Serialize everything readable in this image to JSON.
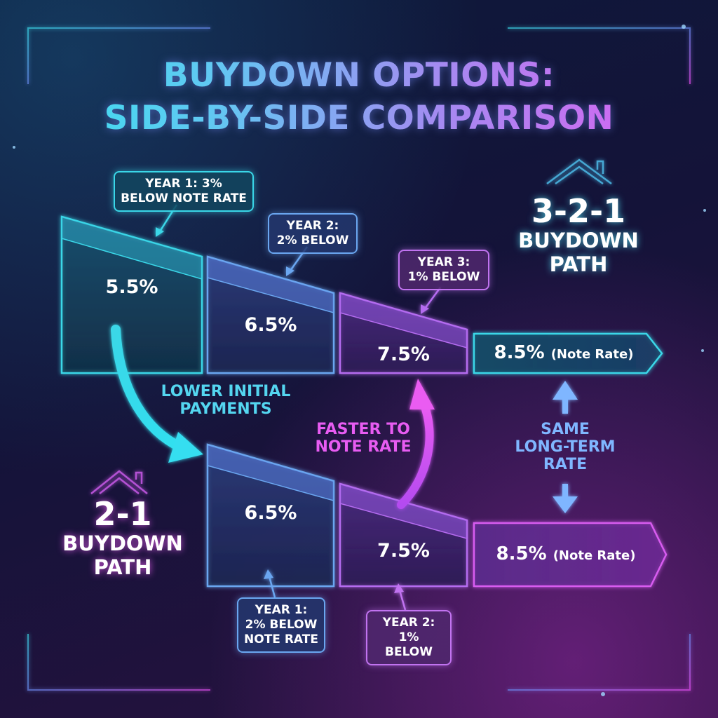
{
  "title": {
    "line1": "BUYDOWN OPTIONS:",
    "line2": "SIDE-BY-SIDE COMPARISON"
  },
  "path_321": {
    "label_number": "3-2-1",
    "label_text_1": "BUYDOWN",
    "label_text_2": "PATH",
    "steps": [
      {
        "rate": "5.5%",
        "callout": [
          "YEAR 1: 3%",
          "BELOW NOTE RATE"
        ]
      },
      {
        "rate": "6.5%",
        "callout": [
          "YEAR 2:",
          "2% BELOW"
        ]
      },
      {
        "rate": "7.5%",
        "callout": [
          "YEAR 3:",
          "1% BELOW"
        ]
      }
    ],
    "note_rate": {
      "rate": "8.5%",
      "label": "(Note Rate)"
    }
  },
  "path_21": {
    "label_number": "2-1",
    "label_text_1": "BUYDOWN",
    "label_text_2": "PATH",
    "steps": [
      {
        "rate": "6.5%",
        "callout": [
          "YEAR 1:",
          "2% BELOW",
          "NOTE RATE"
        ]
      },
      {
        "rate": "7.5%",
        "callout": [
          "YEAR 2:",
          "1% BELOW"
        ]
      }
    ],
    "note_rate": {
      "rate": "8.5%",
      "label": "(Note Rate)"
    }
  },
  "flows": {
    "lower_initial": [
      "LOWER INITIAL",
      "PAYMENTS"
    ],
    "faster": [
      "FASTER TO",
      "NOTE RATE"
    ],
    "same": [
      "SAME",
      "LONG-TERM",
      "RATE"
    ]
  },
  "colors": {
    "teal": "#3ad7e8",
    "blue": "#6aa6f0",
    "violet": "#b56cf0",
    "magenta": "#e24ff0"
  },
  "icons": [
    "house-icon",
    "house-icon"
  ]
}
